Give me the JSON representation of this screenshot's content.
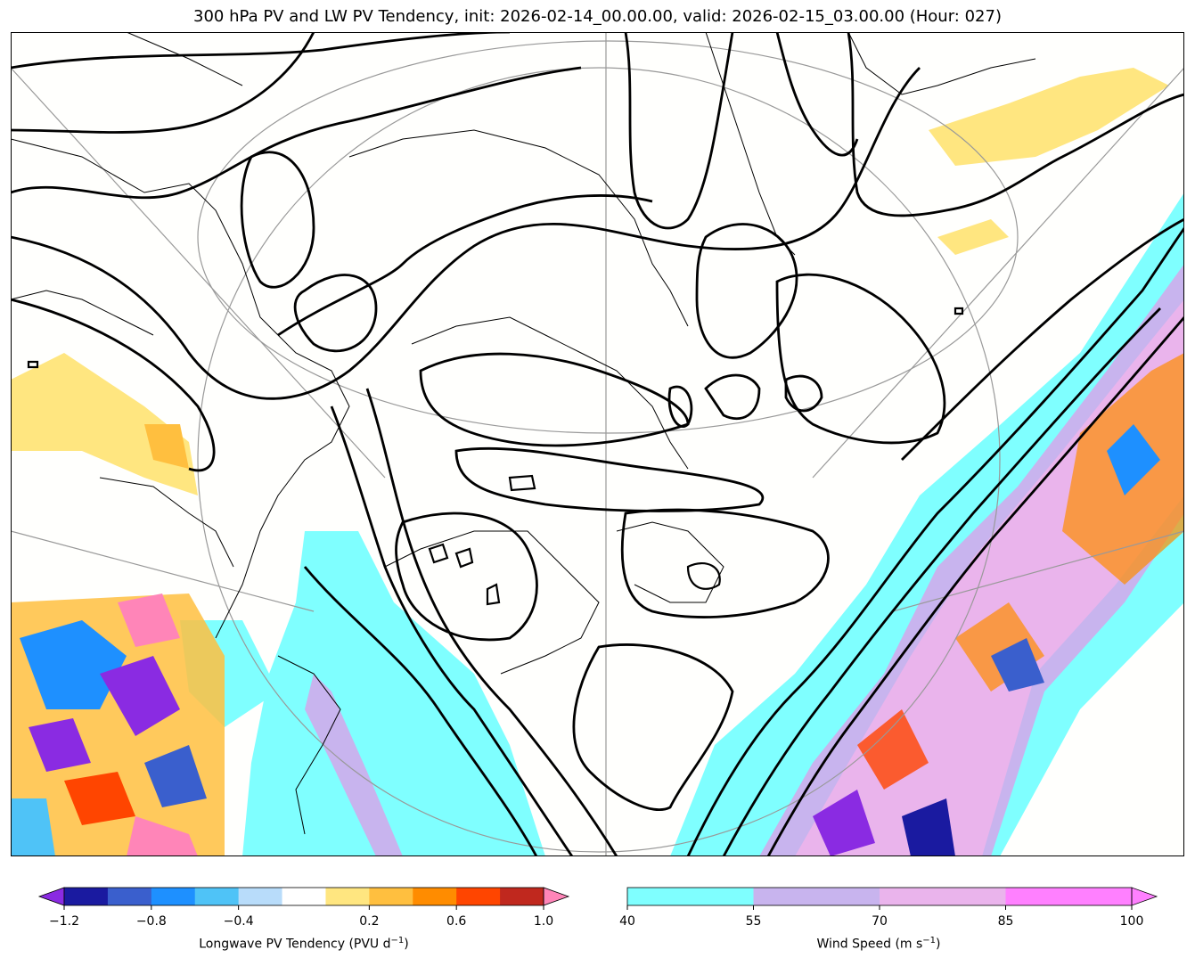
{
  "title": "300 hPa PV and LW PV Tendency, init: 2026-02-14_00.00.00, valid: 2026-02-15_03.00.00 (Hour: 027)",
  "colors": {
    "tendency": [
      "#8a2be2",
      "#1a1aa0",
      "#3a5fcd",
      "#1e90ff",
      "#4fc3f7",
      "#b8dcfa",
      "#ffffff",
      "#ffe680",
      "#ffbf3f",
      "#ff8c00",
      "#ff4500",
      "#c0281e",
      "#ff85b8"
    ],
    "wind": [
      "#7fffff",
      "#c8b4ee",
      "#eab4ec",
      "#ff80ff"
    ],
    "contour": "#000000",
    "coast": "#000000",
    "graticule": "#999999"
  },
  "tendency_colorbar": {
    "ticks": [
      "−1.2",
      "−0.8",
      "−0.4",
      "0.2",
      "0.6",
      "1.0"
    ],
    "label": "Longwave PV Tendency (PVU d",
    "label_exp": "−1",
    "label_tail": ")"
  },
  "wind_colorbar": {
    "ticks": [
      "40",
      "55",
      "70",
      "85",
      "100"
    ],
    "label": "Wind Speed (m s",
    "label_exp": "−1",
    "label_tail": ")"
  }
}
